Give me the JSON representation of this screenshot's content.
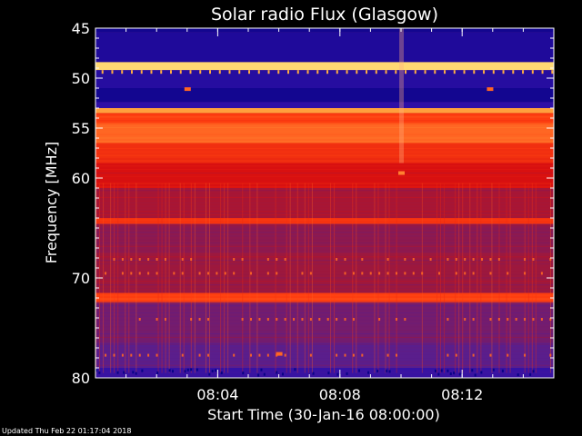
{
  "chart_data": {
    "type": "heatmap",
    "title": "Solar radio Flux (Glasgow)",
    "xlabel": "Start Time (30-Jan-16 08:00:00)",
    "ylabel": "Frequency [MHz]",
    "x_unit": "minutes after 08:00:00",
    "xlim": [
      0,
      15
    ],
    "ylim": [
      45,
      80
    ],
    "y_scale": "linear, frequency increasing downward",
    "x_ticks": [
      {
        "value": 4,
        "label": "08:04"
      },
      {
        "value": 8,
        "label": "08:08"
      },
      {
        "value": 12,
        "label": "08:12"
      }
    ],
    "y_ticks": [
      {
        "value": 45,
        "label": "45"
      },
      {
        "value": 50,
        "label": "50"
      },
      {
        "value": 55,
        "label": "55"
      },
      {
        "value": 60,
        "label": "60"
      },
      {
        "value": 70,
        "label": "70"
      },
      {
        "value": 80,
        "label": "80"
      }
    ],
    "colormap": [
      "#000080",
      "#3010a8",
      "#5a1e8c",
      "#9a1840",
      "#d81010",
      "#ff4010",
      "#ff8030",
      "#ffd050",
      "#ffffff"
    ],
    "bands": [
      {
        "from": 45.0,
        "to": 45.4,
        "level": 0.05
      },
      {
        "from": 45.4,
        "to": 48.4,
        "level": 0.08
      },
      {
        "from": 48.4,
        "to": 49.2,
        "level": 0.9
      },
      {
        "from": 49.2,
        "to": 51.0,
        "level": 0.1
      },
      {
        "from": 51.0,
        "to": 52.4,
        "level": 0.05
      },
      {
        "from": 52.4,
        "to": 53.0,
        "level": 0.12
      },
      {
        "from": 53.0,
        "to": 53.5,
        "level": 0.8
      },
      {
        "from": 53.5,
        "to": 54.5,
        "level": 0.62
      },
      {
        "from": 54.5,
        "to": 56.5,
        "level": 0.7
      },
      {
        "from": 56.5,
        "to": 58.5,
        "level": 0.58
      },
      {
        "from": 58.5,
        "to": 61.0,
        "level": 0.5
      },
      {
        "from": 61.0,
        "to": 64.0,
        "level": 0.4
      },
      {
        "from": 64.0,
        "to": 64.6,
        "level": 0.6
      },
      {
        "from": 64.6,
        "to": 67.5,
        "level": 0.35
      },
      {
        "from": 67.5,
        "to": 71.5,
        "level": 0.38
      },
      {
        "from": 71.5,
        "to": 72.4,
        "level": 0.62
      },
      {
        "from": 72.4,
        "to": 76.5,
        "level": 0.3
      },
      {
        "from": 76.5,
        "to": 79.0,
        "level": 0.25
      },
      {
        "from": 79.0,
        "to": 80.0,
        "level": 0.15
      }
    ],
    "features": [
      {
        "type": "vertical-streak",
        "x": 10.0,
        "from": 45,
        "to": 58.5
      },
      {
        "type": "spot",
        "x": 10.0,
        "y": 59.5,
        "level": 0.75
      },
      {
        "type": "spot",
        "x": 3.0,
        "y": 51.1,
        "level": 0.7
      },
      {
        "type": "spot",
        "x": 12.9,
        "y": 51.1,
        "level": 0.7
      },
      {
        "type": "spot",
        "x": 6.0,
        "y": 77.6,
        "level": 0.7
      }
    ]
  },
  "footer": "Updated Thu Feb 22 01:17:04 2018"
}
